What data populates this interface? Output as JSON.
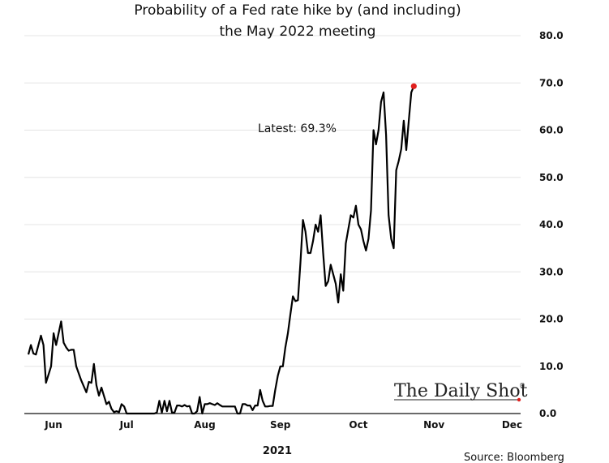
{
  "chart_data": {
    "type": "line",
    "title_lines": [
      "Probability of a Fed rate hike by (and including)",
      "the May 2022 meeting"
    ],
    "xlabel": "2021",
    "ylabel": "",
    "x_axis": {
      "tick_labels": [
        "Jun",
        "Jul",
        "Aug",
        "Sep",
        "Oct",
        "Nov",
        "Dec"
      ],
      "tick_positions": [
        22,
        51,
        82,
        112,
        143,
        173,
        204
      ],
      "range": [
        12,
        209
      ]
    },
    "y_axis": {
      "range": [
        0,
        80
      ],
      "ticks": [
        0.0,
        10.0,
        20.0,
        30.0,
        40.0,
        50.0,
        60.0,
        70.0,
        80.0
      ],
      "tick_labels": [
        "0.0",
        "10.0",
        "20.0",
        "30.0",
        "40.0",
        "50.0",
        "60.0",
        "70.0",
        "80.0"
      ],
      "side": "right"
    },
    "grid": true,
    "series": [
      {
        "name": "",
        "color": "#000000",
        "points": [
          [
            12,
            12.5
          ],
          [
            13,
            14.5
          ],
          [
            14,
            12.7
          ],
          [
            15,
            12.5
          ],
          [
            17,
            16.5
          ],
          [
            18,
            14.5
          ],
          [
            19,
            6.5
          ],
          [
            21,
            10
          ],
          [
            22,
            17
          ],
          [
            23,
            14.5
          ],
          [
            25,
            19.5
          ],
          [
            26,
            15
          ],
          [
            27,
            14
          ],
          [
            28,
            13.3
          ],
          [
            29,
            13.5
          ],
          [
            30,
            13.5
          ],
          [
            31,
            10
          ],
          [
            32,
            8.5
          ],
          [
            33,
            7
          ],
          [
            35,
            4.5
          ],
          [
            36,
            6.7
          ],
          [
            37,
            6.5
          ],
          [
            38,
            10.5
          ],
          [
            39,
            6
          ],
          [
            40,
            3.8
          ],
          [
            41,
            5.5
          ],
          [
            43,
            2
          ],
          [
            44,
            2.5
          ],
          [
            45,
            1
          ],
          [
            46,
            0.3
          ],
          [
            47,
            0.5
          ],
          [
            48,
            0.3
          ],
          [
            49,
            2
          ],
          [
            50,
            1.5
          ],
          [
            51,
            0
          ],
          [
            52,
            0
          ],
          [
            53,
            0
          ],
          [
            54,
            0
          ],
          [
            55,
            0
          ],
          [
            56,
            0
          ],
          [
            57,
            0
          ],
          [
            58,
            0
          ],
          [
            59,
            0
          ],
          [
            60,
            0
          ],
          [
            61,
            0
          ],
          [
            62,
            0
          ],
          [
            63,
            0.2
          ],
          [
            64,
            2.7
          ],
          [
            65,
            0.2
          ],
          [
            66,
            2.7
          ],
          [
            67,
            0.5
          ],
          [
            68,
            2.7
          ],
          [
            69,
            0.2
          ],
          [
            70,
            0.2
          ],
          [
            71,
            1.7
          ],
          [
            72,
            1.7
          ],
          [
            73,
            1.5
          ],
          [
            74,
            1.8
          ],
          [
            75,
            1.5
          ],
          [
            76,
            1.6
          ],
          [
            77,
            0
          ],
          [
            78,
            0
          ],
          [
            79,
            0.5
          ],
          [
            80,
            3.5
          ],
          [
            81,
            0
          ],
          [
            82,
            2
          ],
          [
            83,
            2
          ],
          [
            84,
            2.2
          ],
          [
            85,
            2
          ],
          [
            86,
            1.8
          ],
          [
            87,
            2.2
          ],
          [
            88,
            1.8
          ],
          [
            89,
            1.5
          ],
          [
            90,
            1.5
          ],
          [
            91,
            1.5
          ],
          [
            92,
            1.5
          ],
          [
            93,
            1.5
          ],
          [
            94,
            1.5
          ],
          [
            95,
            0
          ],
          [
            96,
            0
          ],
          [
            97,
            2
          ],
          [
            98,
            2
          ],
          [
            99,
            1.7
          ],
          [
            100,
            1.7
          ],
          [
            101,
            0.7
          ],
          [
            102,
            1.7
          ],
          [
            103,
            1.7
          ],
          [
            104,
            5
          ],
          [
            105,
            2.7
          ],
          [
            106,
            1.5
          ],
          [
            107,
            1.5
          ],
          [
            108,
            1.6
          ],
          [
            109,
            1.6
          ],
          [
            110,
            5
          ],
          [
            111,
            8
          ],
          [
            112,
            10
          ],
          [
            113,
            10
          ],
          [
            114,
            14
          ],
          [
            115,
            17
          ],
          [
            116,
            21
          ],
          [
            117,
            24.8
          ],
          [
            118,
            23.8
          ],
          [
            119,
            24
          ],
          [
            120,
            32
          ],
          [
            121,
            41
          ],
          [
            122,
            38.5
          ],
          [
            123,
            34
          ],
          [
            124,
            34
          ],
          [
            125,
            36.5
          ],
          [
            126,
            40
          ],
          [
            127,
            38.5
          ],
          [
            128,
            42
          ],
          [
            129,
            34
          ],
          [
            130,
            27
          ],
          [
            131,
            28
          ],
          [
            132,
            31.5
          ],
          [
            133,
            29.5
          ],
          [
            134,
            27.5
          ],
          [
            135,
            23.5
          ],
          [
            136,
            29.5
          ],
          [
            137,
            26
          ],
          [
            138,
            36
          ],
          [
            139,
            39
          ],
          [
            140,
            42
          ],
          [
            141,
            41.5
          ],
          [
            142,
            44
          ],
          [
            143,
            40
          ],
          [
            144,
            39
          ],
          [
            145,
            36.5
          ],
          [
            146,
            34.5
          ],
          [
            147,
            37
          ],
          [
            148,
            43
          ],
          [
            149,
            60
          ],
          [
            150,
            57
          ],
          [
            151,
            60
          ],
          [
            152,
            66
          ],
          [
            153,
            68
          ],
          [
            154,
            59
          ],
          [
            155,
            42
          ],
          [
            156,
            37
          ],
          [
            157,
            35
          ],
          [
            158,
            51.5
          ],
          [
            159,
            53.5
          ],
          [
            160,
            56
          ],
          [
            161,
            62
          ],
          [
            162,
            55.8
          ],
          [
            163,
            62
          ],
          [
            164,
            68
          ],
          [
            165,
            69.3
          ]
        ]
      }
    ],
    "latest_point": {
      "x": 165,
      "y": 69.3,
      "color": "#e0201e"
    },
    "annotations": [
      {
        "text": "Latest:  69.3%"
      }
    ],
    "source": "Source: Bloomberg",
    "logo_text": "The Daily Shot"
  }
}
